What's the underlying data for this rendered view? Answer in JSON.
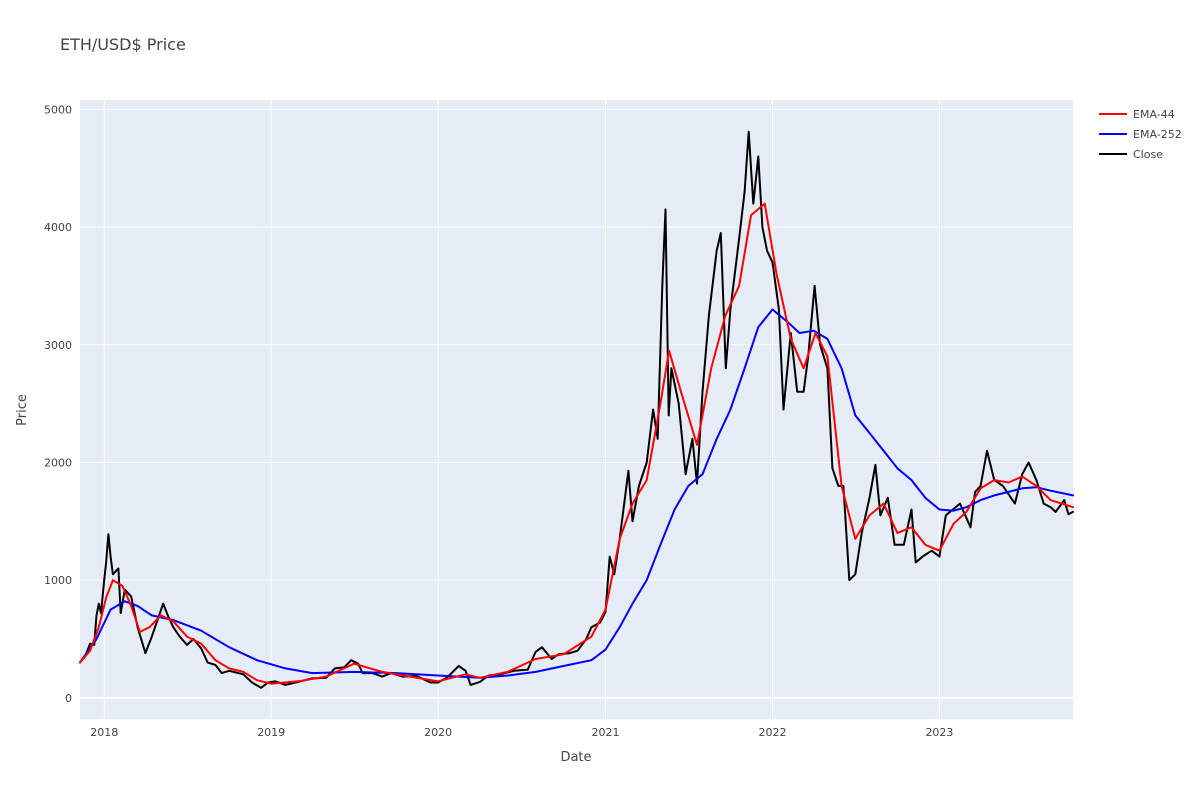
{
  "chart_data": {
    "type": "line",
    "title": "ETH/USD$ Price",
    "xlabel": "Date",
    "ylabel": "Price",
    "xlim": [
      "2017-11-09",
      "2023-10-20"
    ],
    "ylim": [
      -180,
      5080
    ],
    "x_ticks": [
      "2018",
      "2019",
      "2020",
      "2021",
      "2022",
      "2023"
    ],
    "y_ticks": [
      0,
      1000,
      2000,
      3000,
      4000,
      5000
    ],
    "grid": true,
    "legend_position": "top-right",
    "series": [
      {
        "name": "EMA-44",
        "color": "#ff0000",
        "points": [
          [
            "2017-11-09",
            300
          ],
          [
            "2017-12-01",
            400
          ],
          [
            "2017-12-20",
            600
          ],
          [
            "2018-01-05",
            850
          ],
          [
            "2018-01-20",
            1000
          ],
          [
            "2018-02-10",
            950
          ],
          [
            "2018-03-01",
            780
          ],
          [
            "2018-03-20",
            560
          ],
          [
            "2018-04-10",
            600
          ],
          [
            "2018-05-05",
            700
          ],
          [
            "2018-06-01",
            650
          ],
          [
            "2018-07-01",
            520
          ],
          [
            "2018-08-01",
            460
          ],
          [
            "2018-09-01",
            320
          ],
          [
            "2018-10-01",
            250
          ],
          [
            "2018-11-01",
            220
          ],
          [
            "2018-12-01",
            150
          ],
          [
            "2019-01-01",
            120
          ],
          [
            "2019-03-01",
            140
          ],
          [
            "2019-05-01",
            180
          ],
          [
            "2019-07-01",
            290
          ],
          [
            "2019-09-01",
            220
          ],
          [
            "2019-11-01",
            180
          ],
          [
            "2020-01-01",
            140
          ],
          [
            "2020-03-01",
            200
          ],
          [
            "2020-04-01",
            170
          ],
          [
            "2020-06-01",
            220
          ],
          [
            "2020-08-01",
            330
          ],
          [
            "2020-10-01",
            370
          ],
          [
            "2020-12-01",
            520
          ],
          [
            "2021-01-01",
            750
          ],
          [
            "2021-02-01",
            1350
          ],
          [
            "2021-03-01",
            1650
          ],
          [
            "2021-04-01",
            1850
          ],
          [
            "2021-05-01",
            2500
          ],
          [
            "2021-05-20",
            2950
          ],
          [
            "2021-06-15",
            2600
          ],
          [
            "2021-07-20",
            2150
          ],
          [
            "2021-08-20",
            2800
          ],
          [
            "2021-09-20",
            3250
          ],
          [
            "2021-10-20",
            3500
          ],
          [
            "2021-11-15",
            4100
          ],
          [
            "2021-12-15",
            4200
          ],
          [
            "2022-01-10",
            3600
          ],
          [
            "2022-02-10",
            3050
          ],
          [
            "2022-03-10",
            2800
          ],
          [
            "2022-04-05",
            3100
          ],
          [
            "2022-05-01",
            2900
          ],
          [
            "2022-06-01",
            1800
          ],
          [
            "2022-07-01",
            1350
          ],
          [
            "2022-08-01",
            1550
          ],
          [
            "2022-09-01",
            1650
          ],
          [
            "2022-10-01",
            1400
          ],
          [
            "2022-11-01",
            1450
          ],
          [
            "2022-12-01",
            1300
          ],
          [
            "2023-01-01",
            1250
          ],
          [
            "2023-02-01",
            1480
          ],
          [
            "2023-03-01",
            1580
          ],
          [
            "2023-04-01",
            1780
          ],
          [
            "2023-05-01",
            1850
          ],
          [
            "2023-06-01",
            1830
          ],
          [
            "2023-07-01",
            1880
          ],
          [
            "2023-08-01",
            1800
          ],
          [
            "2023-09-01",
            1680
          ],
          [
            "2023-10-20",
            1620
          ]
        ]
      },
      {
        "name": "EMA-252",
        "color": "#0000ff",
        "points": [
          [
            "2017-11-09",
            300
          ],
          [
            "2017-12-15",
            500
          ],
          [
            "2018-01-15",
            750
          ],
          [
            "2018-02-15",
            820
          ],
          [
            "2018-03-15",
            780
          ],
          [
            "2018-04-15",
            700
          ],
          [
            "2018-06-01",
            660
          ],
          [
            "2018-08-01",
            570
          ],
          [
            "2018-10-01",
            430
          ],
          [
            "2018-12-01",
            320
          ],
          [
            "2019-02-01",
            250
          ],
          [
            "2019-04-01",
            210
          ],
          [
            "2019-07-01",
            220
          ],
          [
            "2019-10-01",
            210
          ],
          [
            "2020-01-01",
            190
          ],
          [
            "2020-04-01",
            170
          ],
          [
            "2020-06-01",
            190
          ],
          [
            "2020-08-01",
            220
          ],
          [
            "2020-10-01",
            270
          ],
          [
            "2020-12-01",
            320
          ],
          [
            "2021-01-01",
            410
          ],
          [
            "2021-02-01",
            600
          ],
          [
            "2021-03-01",
            800
          ],
          [
            "2021-04-01",
            1000
          ],
          [
            "2021-05-01",
            1300
          ],
          [
            "2021-06-01",
            1600
          ],
          [
            "2021-07-01",
            1800
          ],
          [
            "2021-08-01",
            1900
          ],
          [
            "2021-09-01",
            2200
          ],
          [
            "2021-10-01",
            2450
          ],
          [
            "2021-11-01",
            2800
          ],
          [
            "2021-12-01",
            3150
          ],
          [
            "2022-01-01",
            3300
          ],
          [
            "2022-02-01",
            3200
          ],
          [
            "2022-03-01",
            3100
          ],
          [
            "2022-04-01",
            3120
          ],
          [
            "2022-05-01",
            3050
          ],
          [
            "2022-06-01",
            2800
          ],
          [
            "2022-07-01",
            2400
          ],
          [
            "2022-08-01",
            2250
          ],
          [
            "2022-09-01",
            2100
          ],
          [
            "2022-10-01",
            1950
          ],
          [
            "2022-11-01",
            1850
          ],
          [
            "2022-12-01",
            1700
          ],
          [
            "2023-01-01",
            1600
          ],
          [
            "2023-02-01",
            1590
          ],
          [
            "2023-03-01",
            1620
          ],
          [
            "2023-04-01",
            1680
          ],
          [
            "2023-05-01",
            1720
          ],
          [
            "2023-06-01",
            1750
          ],
          [
            "2023-07-01",
            1780
          ],
          [
            "2023-08-01",
            1790
          ],
          [
            "2023-09-01",
            1760
          ],
          [
            "2023-10-20",
            1720
          ]
        ]
      },
      {
        "name": "Close",
        "color": "#000000",
        "points": [
          [
            "2017-11-09",
            300
          ],
          [
            "2017-11-20",
            350
          ],
          [
            "2017-12-01",
            460
          ],
          [
            "2017-12-10",
            450
          ],
          [
            "2017-12-15",
            700
          ],
          [
            "2017-12-20",
            800
          ],
          [
            "2017-12-25",
            720
          ],
          [
            "2018-01-01",
            1000
          ],
          [
            "2018-01-05",
            1150
          ],
          [
            "2018-01-10",
            1390
          ],
          [
            "2018-01-15",
            1200
          ],
          [
            "2018-01-20",
            1050
          ],
          [
            "2018-02-01",
            1100
          ],
          [
            "2018-02-06",
            720
          ],
          [
            "2018-02-15",
            920
          ],
          [
            "2018-03-01",
            860
          ],
          [
            "2018-03-15",
            600
          ],
          [
            "2018-04-01",
            380
          ],
          [
            "2018-04-15",
            520
          ],
          [
            "2018-05-01",
            700
          ],
          [
            "2018-05-10",
            800
          ],
          [
            "2018-05-20",
            700
          ],
          [
            "2018-06-01",
            600
          ],
          [
            "2018-06-15",
            520
          ],
          [
            "2018-07-01",
            450
          ],
          [
            "2018-07-15",
            500
          ],
          [
            "2018-08-01",
            420
          ],
          [
            "2018-08-15",
            300
          ],
          [
            "2018-09-01",
            280
          ],
          [
            "2018-09-15",
            210
          ],
          [
            "2018-10-01",
            230
          ],
          [
            "2018-11-01",
            200
          ],
          [
            "2018-11-20",
            130
          ],
          [
            "2018-12-10",
            85
          ],
          [
            "2018-12-25",
            130
          ],
          [
            "2019-01-10",
            140
          ],
          [
            "2019-02-01",
            110
          ],
          [
            "2019-03-01",
            135
          ],
          [
            "2019-04-01",
            165
          ],
          [
            "2019-05-01",
            170
          ],
          [
            "2019-05-20",
            250
          ],
          [
            "2019-06-10",
            260
          ],
          [
            "2019-06-25",
            320
          ],
          [
            "2019-07-10",
            290
          ],
          [
            "2019-07-20",
            210
          ],
          [
            "2019-08-10",
            210
          ],
          [
            "2019-09-01",
            180
          ],
          [
            "2019-09-20",
            210
          ],
          [
            "2019-10-15",
            180
          ],
          [
            "2019-11-15",
            185
          ],
          [
            "2019-12-15",
            130
          ],
          [
            "2020-01-01",
            130
          ],
          [
            "2020-01-20",
            170
          ],
          [
            "2020-02-15",
            270
          ],
          [
            "2020-03-01",
            230
          ],
          [
            "2020-03-12",
            110
          ],
          [
            "2020-04-01",
            135
          ],
          [
            "2020-04-20",
            190
          ],
          [
            "2020-05-15",
            200
          ],
          [
            "2020-06-15",
            230
          ],
          [
            "2020-07-15",
            240
          ],
          [
            "2020-08-01",
            390
          ],
          [
            "2020-08-15",
            430
          ],
          [
            "2020-09-05",
            330
          ],
          [
            "2020-09-20",
            370
          ],
          [
            "2020-10-15",
            380
          ],
          [
            "2020-11-01",
            400
          ],
          [
            "2020-11-20",
            500
          ],
          [
            "2020-12-01",
            600
          ],
          [
            "2020-12-20",
            640
          ],
          [
            "2021-01-01",
            730
          ],
          [
            "2021-01-10",
            1200
          ],
          [
            "2021-01-20",
            1050
          ],
          [
            "2021-02-01",
            1350
          ],
          [
            "2021-02-20",
            1930
          ],
          [
            "2021-03-01",
            1500
          ],
          [
            "2021-03-15",
            1800
          ],
          [
            "2021-04-01",
            2000
          ],
          [
            "2021-04-15",
            2450
          ],
          [
            "2021-04-25",
            2200
          ],
          [
            "2021-05-05",
            3500
          ],
          [
            "2021-05-12",
            4150
          ],
          [
            "2021-05-19",
            2400
          ],
          [
            "2021-05-25",
            2800
          ],
          [
            "2021-06-10",
            2500
          ],
          [
            "2021-06-25",
            1900
          ],
          [
            "2021-07-10",
            2200
          ],
          [
            "2021-07-20",
            1820
          ],
          [
            "2021-08-01",
            2600
          ],
          [
            "2021-08-15",
            3250
          ],
          [
            "2021-09-01",
            3800
          ],
          [
            "2021-09-10",
            3950
          ],
          [
            "2021-09-21",
            2800
          ],
          [
            "2021-10-01",
            3300
          ],
          [
            "2021-10-20",
            3900
          ],
          [
            "2021-11-01",
            4300
          ],
          [
            "2021-11-10",
            4810
          ],
          [
            "2021-11-20",
            4200
          ],
          [
            "2021-12-01",
            4600
          ],
          [
            "2021-12-10",
            4000
          ],
          [
            "2021-12-20",
            3800
          ],
          [
            "2022-01-01",
            3700
          ],
          [
            "2022-01-15",
            3300
          ],
          [
            "2022-01-25",
            2450
          ],
          [
            "2022-02-10",
            3100
          ],
          [
            "2022-02-24",
            2600
          ],
          [
            "2022-03-10",
            2600
          ],
          [
            "2022-03-20",
            2900
          ],
          [
            "2022-04-03",
            3500
          ],
          [
            "2022-04-15",
            3000
          ],
          [
            "2022-05-01",
            2800
          ],
          [
            "2022-05-12",
            1950
          ],
          [
            "2022-05-25",
            1800
          ],
          [
            "2022-06-05",
            1800
          ],
          [
            "2022-06-18",
            1000
          ],
          [
            "2022-07-01",
            1050
          ],
          [
            "2022-07-15",
            1400
          ],
          [
            "2022-08-01",
            1700
          ],
          [
            "2022-08-14",
            1980
          ],
          [
            "2022-08-25",
            1550
          ],
          [
            "2022-09-10",
            1700
          ],
          [
            "2022-09-25",
            1300
          ],
          [
            "2022-10-15",
            1300
          ],
          [
            "2022-11-01",
            1600
          ],
          [
            "2022-11-10",
            1150
          ],
          [
            "2022-11-25",
            1200
          ],
          [
            "2022-12-15",
            1250
          ],
          [
            "2023-01-01",
            1200
          ],
          [
            "2023-01-15",
            1550
          ],
          [
            "2023-02-15",
            1650
          ],
          [
            "2023-03-10",
            1450
          ],
          [
            "2023-03-20",
            1750
          ],
          [
            "2023-04-01",
            1800
          ],
          [
            "2023-04-15",
            2100
          ],
          [
            "2023-05-01",
            1850
          ],
          [
            "2023-05-20",
            1800
          ],
          [
            "2023-06-15",
            1650
          ],
          [
            "2023-07-01",
            1900
          ],
          [
            "2023-07-15",
            2000
          ],
          [
            "2023-08-01",
            1850
          ],
          [
            "2023-08-17",
            1650
          ],
          [
            "2023-09-01",
            1620
          ],
          [
            "2023-09-12",
            1580
          ],
          [
            "2023-10-01",
            1680
          ],
          [
            "2023-10-10",
            1560
          ],
          [
            "2023-10-20",
            1580
          ]
        ]
      }
    ]
  }
}
